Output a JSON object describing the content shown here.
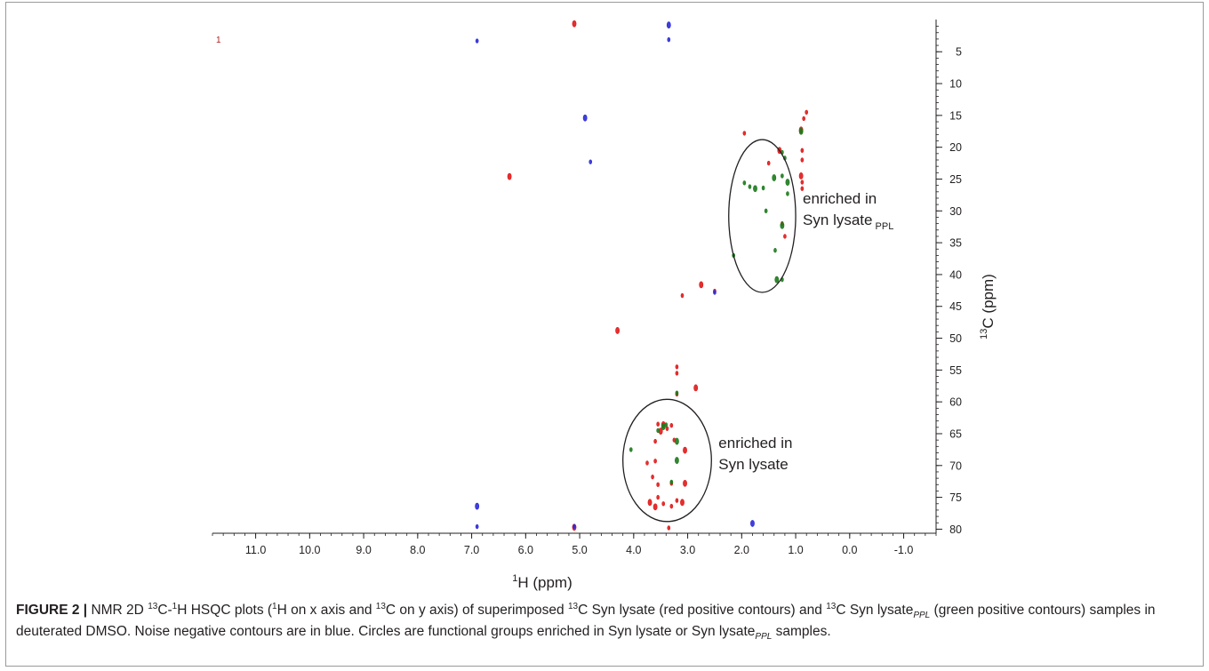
{
  "chart_data": {
    "type": "scatter",
    "title": "",
    "panel_label": "1",
    "xlabel": {
      "sup": "1",
      "text": "H (ppm)"
    },
    "ylabel": {
      "sup": "13",
      "text": "C (ppm)"
    },
    "xlim": [
      11.8,
      -1.6
    ],
    "ylim": [
      0.5,
      80.5
    ],
    "x_axis_reversed": true,
    "xticks": [
      11.0,
      10.0,
      9.0,
      8.0,
      7.0,
      6.0,
      5.0,
      4.0,
      3.0,
      2.0,
      1.0,
      0.0,
      -1.0
    ],
    "xtick_labels": [
      "11.0",
      "10.0",
      "9.0",
      "8.0",
      "7.0",
      "6.0",
      "5.0",
      "4.0",
      "3.0",
      "2.0",
      "1.0",
      "0.0",
      "-1.0"
    ],
    "yticks": [
      5,
      10,
      15,
      20,
      25,
      30,
      35,
      40,
      45,
      50,
      55,
      60,
      65,
      70,
      75,
      80
    ],
    "ytick_labels": [
      "5",
      "10",
      "15",
      "20",
      "25",
      "30",
      "35",
      "40",
      "45",
      "50",
      "55",
      "60",
      "65",
      "70",
      "75",
      "80"
    ],
    "y_axis_side": "right",
    "grid": false,
    "series": [
      {
        "color": "#e0191a",
        "points": [
          [
            5.1,
            0.6
          ],
          [
            0.8,
            14.5
          ],
          [
            0.85,
            15.5
          ],
          [
            0.9,
            17.3
          ],
          [
            1.95,
            17.8
          ],
          [
            0.88,
            20.5
          ],
          [
            1.3,
            20.5
          ],
          [
            0.88,
            22.0
          ],
          [
            1.5,
            22.5
          ],
          [
            0.9,
            24.5
          ],
          [
            0.88,
            25.5
          ],
          [
            0.88,
            26.5
          ],
          [
            6.3,
            24.6
          ],
          [
            1.25,
            32.0
          ],
          [
            1.2,
            34.0
          ],
          [
            2.75,
            41.6
          ],
          [
            2.5,
            42.6
          ],
          [
            3.1,
            43.3
          ],
          [
            4.3,
            48.8
          ],
          [
            3.2,
            54.5
          ],
          [
            3.2,
            55.5
          ],
          [
            2.85,
            57.8
          ],
          [
            3.2,
            58.8
          ],
          [
            3.55,
            63.5
          ],
          [
            3.45,
            63.6
          ],
          [
            3.3,
            63.7
          ],
          [
            3.38,
            64.2
          ],
          [
            3.5,
            64.6
          ],
          [
            3.25,
            66.0
          ],
          [
            3.6,
            66.2
          ],
          [
            3.05,
            67.6
          ],
          [
            3.6,
            69.3
          ],
          [
            3.75,
            69.6
          ],
          [
            3.05,
            72.8
          ],
          [
            3.3,
            72.8
          ],
          [
            3.55,
            73.0
          ],
          [
            3.7,
            75.8
          ],
          [
            3.45,
            76.0
          ],
          [
            3.3,
            76.4
          ],
          [
            3.6,
            76.5
          ],
          [
            3.2,
            75.5
          ],
          [
            3.55,
            75.0
          ],
          [
            3.1,
            75.8
          ],
          [
            3.65,
            71.8
          ],
          [
            3.35,
            79.8
          ],
          [
            5.1,
            79.7
          ]
        ]
      },
      {
        "color": "#1d7a1d",
        "points": [
          [
            0.9,
            17.5
          ],
          [
            1.25,
            20.8
          ],
          [
            1.2,
            21.7
          ],
          [
            1.4,
            24.8
          ],
          [
            1.95,
            25.6
          ],
          [
            1.85,
            26.2
          ],
          [
            1.75,
            26.5
          ],
          [
            1.6,
            26.4
          ],
          [
            1.25,
            24.5
          ],
          [
            1.15,
            25.5
          ],
          [
            1.15,
            27.3
          ],
          [
            1.55,
            30.0
          ],
          [
            1.25,
            32.3
          ],
          [
            1.38,
            36.2
          ],
          [
            2.15,
            37.0
          ],
          [
            1.35,
            40.8
          ],
          [
            1.25,
            40.8
          ],
          [
            3.2,
            58.6
          ],
          [
            3.45,
            63.9
          ],
          [
            3.4,
            63.6
          ],
          [
            4.05,
            67.5
          ],
          [
            3.2,
            69.2
          ],
          [
            3.3,
            72.6
          ],
          [
            3.55,
            64.5
          ],
          [
            3.2,
            66.2
          ]
        ]
      },
      {
        "color": "#2a2ad8",
        "points": [
          [
            3.35,
            0.8
          ],
          [
            6.9,
            3.3
          ],
          [
            3.35,
            3.1
          ],
          [
            4.9,
            15.4
          ],
          [
            4.8,
            22.3
          ],
          [
            2.5,
            42.8
          ],
          [
            6.9,
            76.4
          ],
          [
            6.9,
            79.6
          ],
          [
            5.1,
            79.6
          ],
          [
            1.8,
            79.1
          ]
        ]
      }
    ],
    "annotations": [
      {
        "lines": [
          "enriched in",
          "Syn lysate"
        ],
        "sub": "PPL",
        "shape": "ellipse",
        "center": [
          1.62,
          30.8
        ],
        "radii_ppm": [
          0.62,
          12.0
        ]
      },
      {
        "lines": [
          "enriched in",
          "Syn lysate"
        ],
        "sub": "",
        "shape": "ellipse",
        "center": [
          3.38,
          69.2
        ],
        "radii_ppm": [
          0.82,
          9.6
        ]
      }
    ]
  },
  "caption": {
    "label": "FIGURE 2 |",
    "parts": [
      {
        "t": " NMR 2D "
      },
      {
        "sup": "13"
      },
      {
        "t": "C-"
      },
      {
        "sup": "1"
      },
      {
        "t": "H HSQC plots ("
      },
      {
        "sup": "1"
      },
      {
        "t": "H on x axis and "
      },
      {
        "sup": "13"
      },
      {
        "t": "C on y axis) of superimposed "
      },
      {
        "sup": "13"
      },
      {
        "t": "C Syn lysate (red positive contours) and "
      },
      {
        "sup": "13"
      },
      {
        "t": "C Syn lysate"
      },
      {
        "sub": "PPL"
      },
      {
        "t": " (green positive contours) samples in deuterated DMSO. Noise negative contours are in blue. Circles are functional groups enriched in Syn lysate or Syn lysate"
      },
      {
        "sub": "PPL"
      },
      {
        "t": " samples."
      }
    ]
  }
}
